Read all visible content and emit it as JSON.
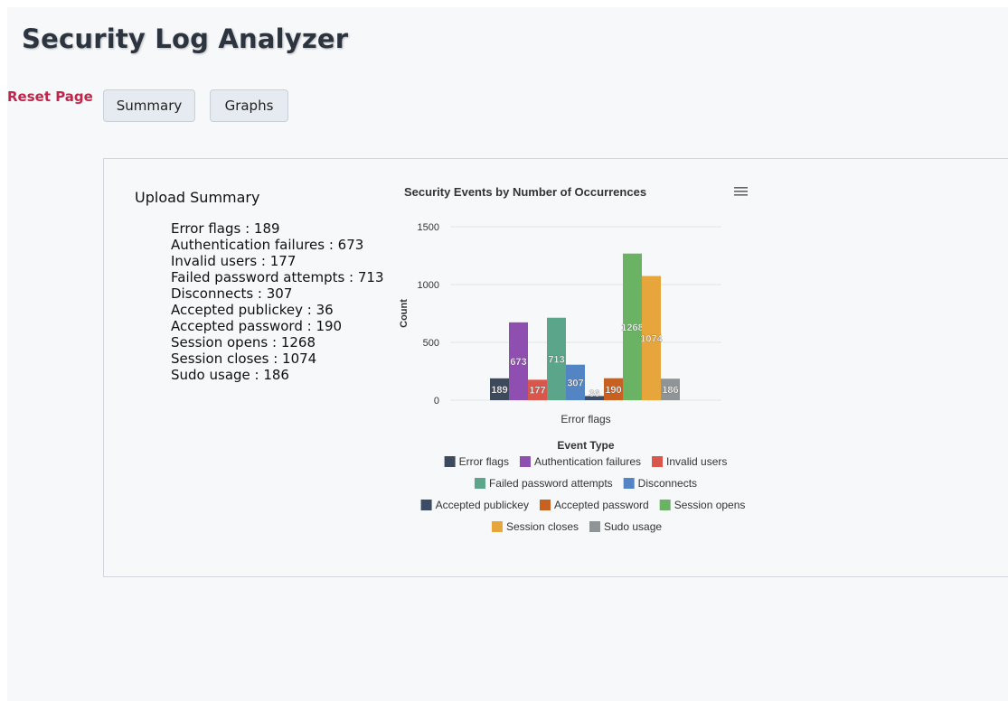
{
  "app": {
    "title": "Security Log Analyzer"
  },
  "nav": {
    "reset_label": "Reset Page",
    "summary_label": "Summary",
    "graphs_label": "Graphs"
  },
  "summary": {
    "title": "Upload Summary",
    "items": [
      {
        "label": "Error flags",
        "value": 189
      },
      {
        "label": "Authentication failures",
        "value": 673
      },
      {
        "label": "Invalid users",
        "value": 177
      },
      {
        "label": "Failed password attempts",
        "value": 713
      },
      {
        "label": "Disconnects",
        "value": 307
      },
      {
        "label": "Accepted publickey",
        "value": 36
      },
      {
        "label": "Accepted password",
        "value": 190
      },
      {
        "label": "Session opens",
        "value": 1268
      },
      {
        "label": "Session closes",
        "value": 1074
      },
      {
        "label": "Sudo usage",
        "value": 186
      }
    ]
  },
  "chart_data": {
    "type": "bar",
    "title": "Security Events by Number of Occurrences",
    "xlabel": "Error flags",
    "ylabel": "Count",
    "legend_title": "Event Type",
    "legend_position": "bottom",
    "categories": [
      "Error flags"
    ],
    "ylim": [
      0,
      1500
    ],
    "yticks": [
      0,
      500,
      1000,
      1500
    ],
    "grid": true,
    "series": [
      {
        "name": "Error flags",
        "values": [
          189
        ],
        "color": "#3d4a5c"
      },
      {
        "name": "Authentication failures",
        "values": [
          673
        ],
        "color": "#8e4fb0"
      },
      {
        "name": "Invalid users",
        "values": [
          177
        ],
        "color": "#d9564c"
      },
      {
        "name": "Failed password attempts",
        "values": [
          713
        ],
        "color": "#5ba68a"
      },
      {
        "name": "Disconnects",
        "values": [
          307
        ],
        "color": "#5384c4"
      },
      {
        "name": "Accepted publickey",
        "values": [
          36
        ],
        "color": "#3b4d66"
      },
      {
        "name": "Accepted password",
        "values": [
          190
        ],
        "color": "#c8611f"
      },
      {
        "name": "Session opens",
        "values": [
          1268
        ],
        "color": "#6ab365"
      },
      {
        "name": "Session closes",
        "values": [
          1074
        ],
        "color": "#e6a63c"
      },
      {
        "name": "Sudo usage",
        "values": [
          186
        ],
        "color": "#8f9496"
      }
    ],
    "menu_icon": "hamburger-menu-icon"
  }
}
